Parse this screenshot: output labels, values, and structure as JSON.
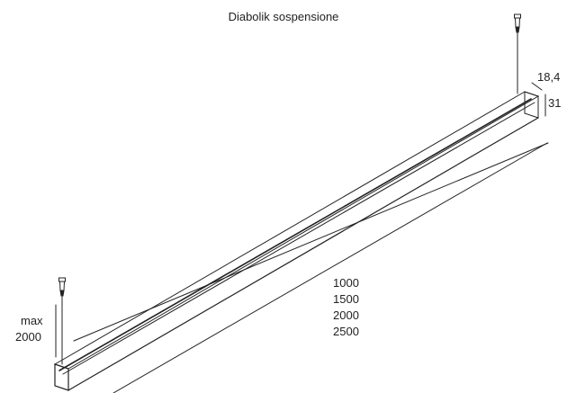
{
  "title": "Diabolik sospensione",
  "lengths": [
    "1000",
    "1500",
    "2000",
    "2500"
  ],
  "profile": {
    "width": "18,4",
    "height": "31"
  },
  "suspension": {
    "label": "max",
    "value": "2000"
  },
  "colors": {
    "line": "#222222",
    "background": "#ffffff"
  }
}
